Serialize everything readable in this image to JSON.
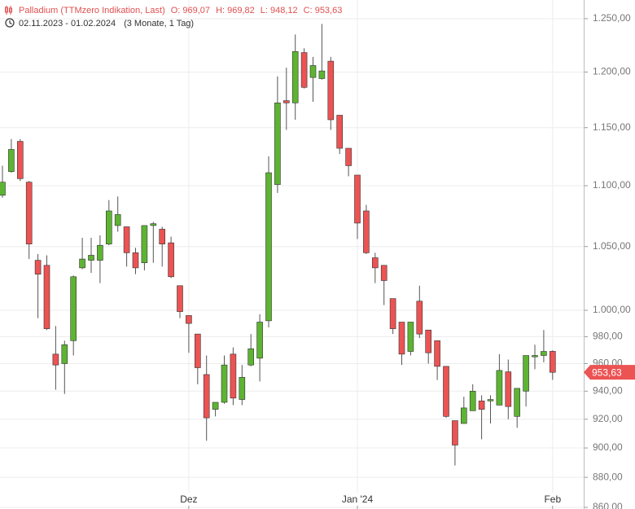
{
  "chart_data": {
    "type": "candlestick",
    "title": "Palladium (TTMzero Indikation, Last)",
    "ohlc_labels": [
      "O: 969,07",
      "H: 969,82",
      "L: 948,12",
      "C: 953,63"
    ],
    "subtitle": "02.11.2023 - 01.02.2024",
    "period": "(3 Monate, 1 Tag)",
    "categories": [
      null,
      null,
      null,
      null,
      null,
      null,
      null,
      null,
      null,
      null,
      null,
      null,
      null,
      null,
      null,
      null,
      null,
      null,
      null,
      null,
      null,
      "Dez",
      null,
      null,
      null,
      null,
      null,
      null,
      null,
      null,
      null,
      null,
      null,
      null,
      null,
      null,
      null,
      null,
      null,
      null,
      "Jan '24",
      null,
      null,
      null,
      null,
      null,
      null,
      null,
      null,
      null,
      null,
      null,
      null,
      null,
      null,
      null,
      null,
      null,
      null,
      null,
      null,
      null,
      "Feb"
    ],
    "open": [
      1092,
      1112,
      1138,
      1103,
      1039,
      1035,
      967,
      960,
      977,
      1033,
      1039,
      1039,
      1052,
      1067,
      1066,
      1045,
      1037,
      1067,
      1064,
      1053,
      1019,
      996,
      982,
      952,
      927,
      932,
      967,
      934,
      959,
      964,
      992,
      1101,
      1174,
      1172,
      1218,
      1195,
      1194,
      1210,
      1161,
      1132,
      1109,
      1079,
      1041,
      1035,
      1009,
      991,
      969,
      1007,
      985,
      977,
      958,
      919,
      917,
      926,
      933,
      933,
      930,
      954,
      922,
      940,
      965,
      966,
      969.07
    ],
    "high": [
      1117,
      1140,
      1140,
      1104,
      1044,
      1043,
      988,
      977,
      1027,
      1057,
      1057,
      1059,
      1088,
      1091,
      1066,
      1049,
      1067,
      1070,
      1066,
      1058,
      1019,
      996,
      982,
      966,
      932,
      966,
      972,
      959,
      982,
      997,
      1125,
      1196,
      1204,
      1235,
      1222,
      1214,
      1245,
      1214,
      1161,
      1132,
      1109,
      1084,
      1045,
      1035,
      1009,
      991,
      991,
      1019,
      985,
      977,
      958,
      919,
      936,
      945,
      937,
      937,
      967,
      963,
      942,
      966,
      974,
      985,
      969.82
    ],
    "low": [
      1090,
      1111,
      1104,
      1040,
      994,
      985,
      941,
      938,
      966,
      1032,
      1029,
      1021,
      1051,
      1062,
      1034,
      1028,
      1031,
      1037,
      1034,
      1025,
      994,
      968,
      945,
      905,
      922,
      931,
      930,
      930,
      958,
      947,
      987,
      1094,
      1148,
      1157,
      1185,
      1173,
      1193,
      1148,
      1127,
      1108,
      1056,
      1044,
      1021,
      1004,
      982,
      959,
      966,
      979,
      960,
      948,
      921,
      888,
      917,
      926,
      906,
      917,
      930,
      920,
      914,
      929,
      956,
      961,
      948.12
    ],
    "close": [
      1103,
      1131,
      1106,
      1052,
      1028,
      986,
      959,
      974,
      1026,
      1040,
      1043,
      1051,
      1079,
      1076,
      1045,
      1033,
      1067,
      1068.5,
      1052,
      1026,
      999,
      990,
      957,
      921,
      932,
      959,
      935,
      950,
      971,
      991,
      1111,
      1172,
      1172,
      1219,
      1186,
      1206,
      1201,
      1157,
      1132,
      1117,
      1069,
      1045,
      1033,
      1023,
      986,
      967,
      991,
      982,
      968,
      958,
      922,
      902,
      928,
      940,
      927,
      934,
      955,
      929,
      942,
      966,
      966,
      969,
      953.63
    ],
    "close_label": "953,63",
    "up_color": "#5db432",
    "down_color": "#ec5353",
    "log_scale": true,
    "grid": true,
    "ylim": [
      860,
      1268
    ],
    "yticks": [
      {
        "value": 860,
        "label": "860,00"
      },
      {
        "value": 880,
        "label": "880,00"
      },
      {
        "value": 900,
        "label": "900,00"
      },
      {
        "value": 920,
        "label": "920,00"
      },
      {
        "value": 940,
        "label": "940,00"
      },
      {
        "value": 960,
        "label": "960,00"
      },
      {
        "value": 980,
        "label": "980,00"
      },
      {
        "value": 1000,
        "label": "1.000,00"
      },
      {
        "value": 1050,
        "label": "1.050,00"
      },
      {
        "value": 1100,
        "label": "1.100,00"
      },
      {
        "value": 1150,
        "label": "1.150,00"
      },
      {
        "value": 1200,
        "label": "1.200,00"
      },
      {
        "value": 1250,
        "label": "1.250,00"
      }
    ]
  }
}
